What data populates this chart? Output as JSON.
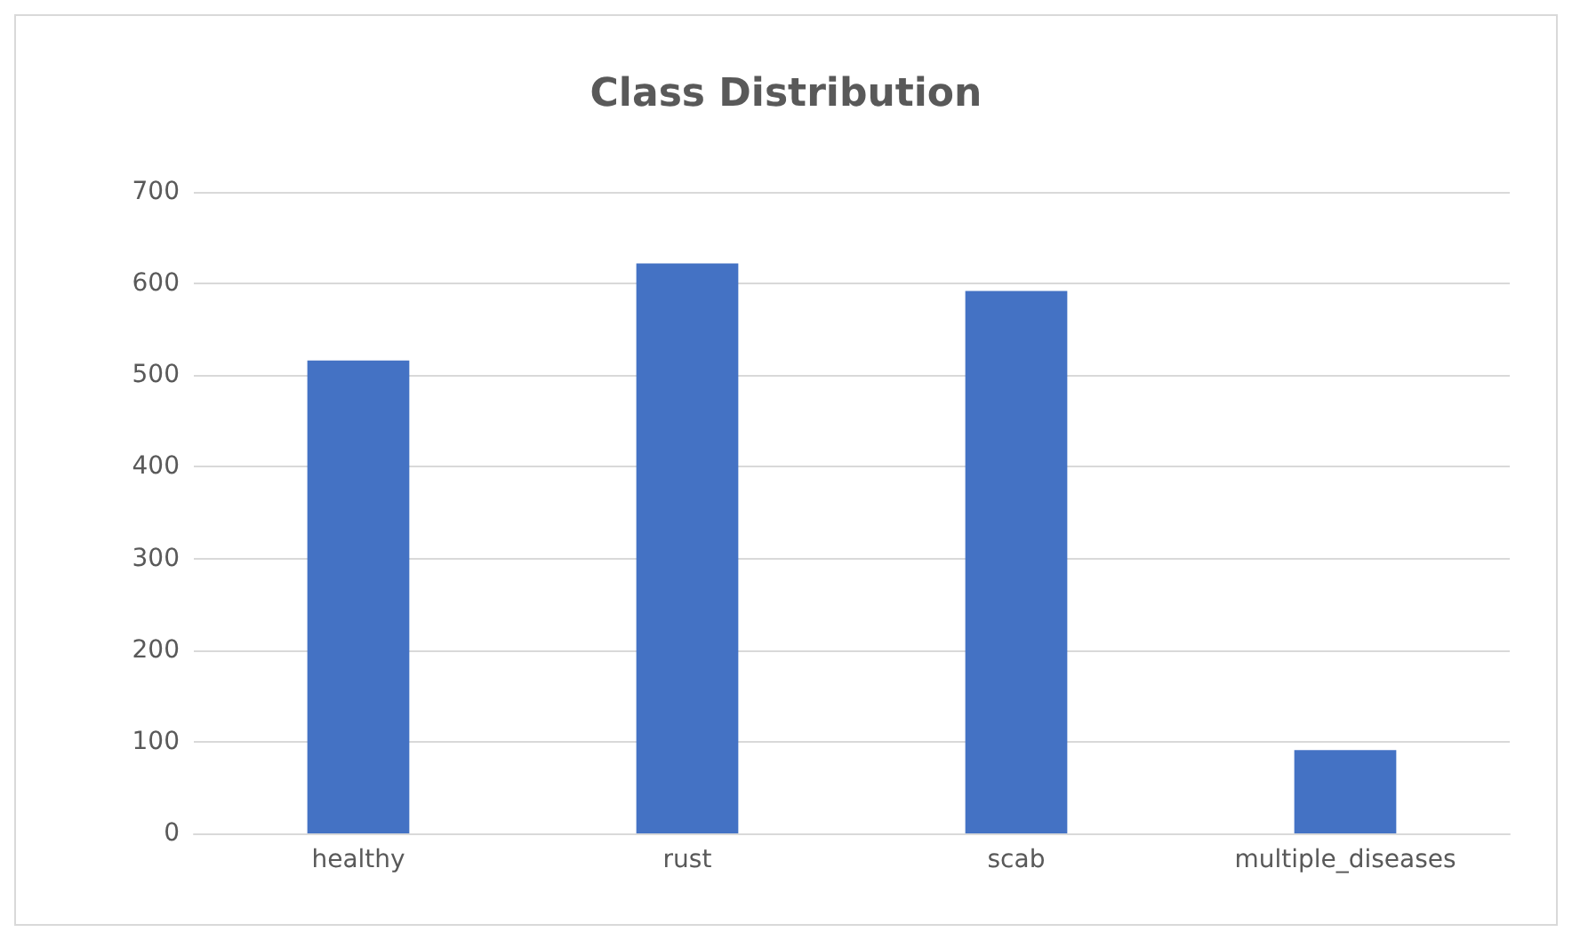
{
  "chart_data": {
    "type": "bar",
    "title": "Class Distribution",
    "categories": [
      "healthy",
      "rust",
      "scab",
      "multiple_diseases"
    ],
    "values": [
      516,
      622,
      592,
      91
    ],
    "color": "#4472c4",
    "ylim": [
      0,
      700
    ],
    "yticks": [
      0,
      100,
      200,
      300,
      400,
      500,
      600,
      700
    ],
    "grid": "y"
  }
}
